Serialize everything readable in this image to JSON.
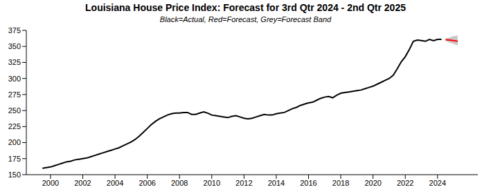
{
  "chart_data": {
    "type": "line",
    "title": "Louisiana House Price Index: Forecast for 3rd Qtr 2024 - 2nd Qtr 2025",
    "subtitle": "Black=Actual, Red=Forecast, Grey=Forecast Band",
    "xlim": [
      1998.5,
      2026.5
    ],
    "xticks": [
      2000,
      2002,
      2004,
      2006,
      2008,
      2010,
      2012,
      2014,
      2016,
      2018,
      2020,
      2022,
      2024
    ],
    "ylim": [
      150,
      375
    ],
    "yticks": [
      150,
      175,
      200,
      225,
      250,
      275,
      300,
      325,
      350,
      375
    ],
    "grid": false,
    "series": [
      {
        "name": "Actual",
        "color": "#000000",
        "x": [
          1999.5,
          1999.75,
          2000,
          2000.25,
          2000.5,
          2000.75,
          2001,
          2001.25,
          2001.5,
          2001.75,
          2002,
          2002.25,
          2002.5,
          2002.75,
          2003,
          2003.25,
          2003.5,
          2003.75,
          2004,
          2004.25,
          2004.5,
          2004.75,
          2005,
          2005.25,
          2005.5,
          2005.75,
          2006,
          2006.25,
          2006.5,
          2006.75,
          2007,
          2007.25,
          2007.5,
          2007.75,
          2008,
          2008.25,
          2008.5,
          2008.75,
          2009,
          2009.25,
          2009.5,
          2009.75,
          2010,
          2010.25,
          2010.5,
          2010.75,
          2011,
          2011.25,
          2011.5,
          2011.75,
          2012,
          2012.25,
          2012.5,
          2012.75,
          2013,
          2013.25,
          2013.5,
          2013.75,
          2014,
          2014.25,
          2014.5,
          2014.75,
          2015,
          2015.25,
          2015.5,
          2015.75,
          2016,
          2016.25,
          2016.5,
          2016.75,
          2017,
          2017.25,
          2017.5,
          2017.75,
          2018,
          2018.25,
          2018.5,
          2018.75,
          2019,
          2019.25,
          2019.5,
          2019.75,
          2020,
          2020.25,
          2020.5,
          2020.75,
          2021,
          2021.25,
          2021.5,
          2021.75,
          2022,
          2022.25,
          2022.5,
          2022.75,
          2023,
          2023.25,
          2023.5,
          2023.75,
          2024,
          2024.25
        ],
        "values": [
          160,
          161,
          162,
          164,
          166,
          168,
          170,
          171,
          173,
          174,
          175,
          176,
          178,
          180,
          182,
          184,
          186,
          188,
          190,
          192,
          195,
          198,
          201,
          205,
          210,
          216,
          222,
          228,
          233,
          237,
          240,
          243,
          245,
          246,
          246,
          247,
          247,
          244,
          244,
          246,
          248,
          246,
          243,
          242,
          241,
          240,
          239,
          241,
          242,
          240,
          238,
          237,
          238,
          240,
          242,
          244,
          243,
          243,
          245,
          246,
          247,
          250,
          253,
          255,
          258,
          260,
          262,
          263,
          266,
          269,
          271,
          272,
          270,
          274,
          277,
          278,
          279,
          280,
          281,
          282,
          284,
          286,
          288,
          291,
          294,
          297,
          300,
          305,
          315,
          326,
          334,
          345,
          358,
          360,
          359,
          358,
          361,
          359,
          361,
          361
        ]
      },
      {
        "name": "Forecast",
        "color": "#ff0000",
        "x": [
          2024.5,
          2024.75,
          2025,
          2025.25
        ],
        "values": [
          360.5,
          360,
          359,
          358
        ]
      }
    ],
    "band": {
      "name": "Forecast Band",
      "color": "#c8c8c8",
      "x": [
        2024.5,
        2024.75,
        2025,
        2025.25
      ],
      "lower": [
        358.5,
        356,
        354,
        351
      ],
      "upper": [
        362.5,
        364,
        366,
        367
      ]
    }
  }
}
